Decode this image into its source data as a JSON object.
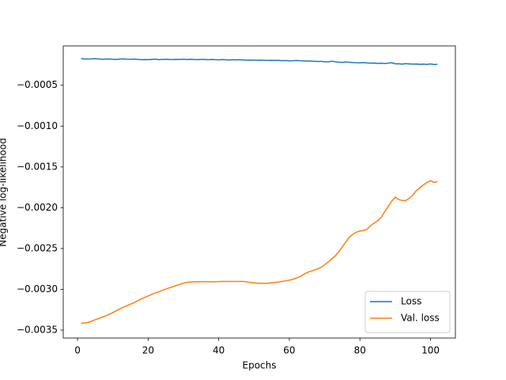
{
  "chart_data": {
    "type": "line",
    "xlabel": "Epochs",
    "ylabel": "Negative log-likelihood",
    "x": [
      1,
      2,
      3,
      4,
      5,
      6,
      7,
      8,
      9,
      10,
      11,
      12,
      13,
      14,
      15,
      16,
      17,
      18,
      19,
      20,
      21,
      22,
      23,
      24,
      25,
      26,
      27,
      28,
      29,
      30,
      31,
      32,
      33,
      34,
      35,
      36,
      37,
      38,
      39,
      40,
      41,
      42,
      43,
      44,
      45,
      46,
      47,
      48,
      49,
      50,
      51,
      52,
      53,
      54,
      55,
      56,
      57,
      58,
      59,
      60,
      61,
      62,
      63,
      64,
      65,
      66,
      67,
      68,
      69,
      70,
      71,
      72,
      73,
      74,
      75,
      76,
      77,
      78,
      79,
      80,
      81,
      82,
      83,
      84,
      85,
      86,
      87,
      88,
      89,
      90,
      91,
      92,
      93,
      94,
      95,
      96,
      97,
      98,
      99,
      100,
      101,
      102
    ],
    "series": [
      {
        "name": "Loss",
        "color": "#1f77b4",
        "values": [
          -0.000172,
          -0.000178,
          -0.000177,
          -0.000176,
          -0.000174,
          -0.000177,
          -0.000181,
          -0.000179,
          -0.000178,
          -0.000181,
          -0.000184,
          -0.000179,
          -0.000176,
          -0.00018,
          -0.000181,
          -0.000179,
          -0.000182,
          -0.000186,
          -0.000185,
          -0.000186,
          -0.000183,
          -0.000179,
          -0.000186,
          -0.000184,
          -0.000181,
          -0.000184,
          -0.000185,
          -0.000182,
          -0.000183,
          -0.00018,
          -0.000185,
          -0.000181,
          -0.000183,
          -0.000186,
          -0.000184,
          -0.000183,
          -0.000187,
          -0.000184,
          -0.000186,
          -0.000188,
          -0.000185,
          -0.000187,
          -0.00019,
          -0.000186,
          -0.000188,
          -0.000186,
          -0.000189,
          -0.000192,
          -0.000191,
          -0.000192,
          -0.000195,
          -0.000192,
          -0.000194,
          -0.000196,
          -0.000195,
          -0.000196,
          -0.000195,
          -0.000198,
          -0.000197,
          -0.0002,
          -0.000199,
          -0.000196,
          -0.000199,
          -0.000201,
          -0.000203,
          -0.000203,
          -0.000205,
          -0.000208,
          -0.000206,
          -0.000211,
          -0.000213,
          -0.000204,
          -0.000212,
          -0.000216,
          -0.00022,
          -0.000214,
          -0.000218,
          -0.000222,
          -0.000224,
          -0.000225,
          -0.000222,
          -0.000226,
          -0.000228,
          -0.000227,
          -0.000232,
          -0.00023,
          -0.000233,
          -0.000229,
          -0.000224,
          -0.000237,
          -0.000236,
          -0.00024,
          -0.000235,
          -0.000238,
          -0.000241,
          -0.000239,
          -0.000243,
          -0.00024,
          -0.000244,
          -0.000238,
          -0.000245,
          -0.000243
        ]
      },
      {
        "name": "Val. loss",
        "color": "#ff7f0e",
        "values": [
          -0.003415,
          -0.003412,
          -0.003405,
          -0.00339,
          -0.003372,
          -0.003357,
          -0.00334,
          -0.003325,
          -0.003305,
          -0.003285,
          -0.003262,
          -0.00324,
          -0.003218,
          -0.0032,
          -0.003182,
          -0.003162,
          -0.00314,
          -0.00312,
          -0.0031,
          -0.003082,
          -0.003063,
          -0.003045,
          -0.00303,
          -0.003013,
          -0.002997,
          -0.002982,
          -0.002968,
          -0.002953,
          -0.002938,
          -0.002925,
          -0.002915,
          -0.00291,
          -0.002908,
          -0.002907,
          -0.002906,
          -0.002906,
          -0.002907,
          -0.002908,
          -0.002907,
          -0.002905,
          -0.002904,
          -0.002904,
          -0.002903,
          -0.002903,
          -0.002904,
          -0.002903,
          -0.002903,
          -0.002908,
          -0.002915,
          -0.00292,
          -0.002924,
          -0.002926,
          -0.002926,
          -0.002925,
          -0.00292,
          -0.002915,
          -0.00291,
          -0.002903,
          -0.002896,
          -0.002888,
          -0.002878,
          -0.002862,
          -0.002845,
          -0.002818,
          -0.002795,
          -0.00278,
          -0.002765,
          -0.00275,
          -0.00273,
          -0.0027,
          -0.002665,
          -0.002628,
          -0.00259,
          -0.00254,
          -0.00248,
          -0.00242,
          -0.00236,
          -0.002325,
          -0.0023,
          -0.002285,
          -0.00228,
          -0.002265,
          -0.00222,
          -0.00219,
          -0.00216,
          -0.00212,
          -0.00205,
          -0.001985,
          -0.00192,
          -0.00187,
          -0.0019,
          -0.001912,
          -0.00191,
          -0.001885,
          -0.001845,
          -0.00179,
          -0.001755,
          -0.00172,
          -0.00169,
          -0.00167,
          -0.00169,
          -0.00168
        ]
      }
    ],
    "xlim": [
      -4.05,
      107.05
    ],
    "xticks": [
      0,
      20,
      40,
      60,
      80,
      100
    ],
    "ylim": [
      -0.003597,
      -1.74e-05
    ],
    "yticks": [
      {
        "value": -0.0005,
        "label": "−0.0005"
      },
      {
        "value": -0.001,
        "label": "−0.0010"
      },
      {
        "value": -0.0015,
        "label": "−0.0015"
      },
      {
        "value": -0.002,
        "label": "−0.0020"
      },
      {
        "value": -0.0025,
        "label": "−0.0025"
      },
      {
        "value": -0.003,
        "label": "−0.0030"
      },
      {
        "value": -0.0035,
        "label": "−0.0035"
      }
    ],
    "grid": false,
    "legend": "lower right"
  }
}
